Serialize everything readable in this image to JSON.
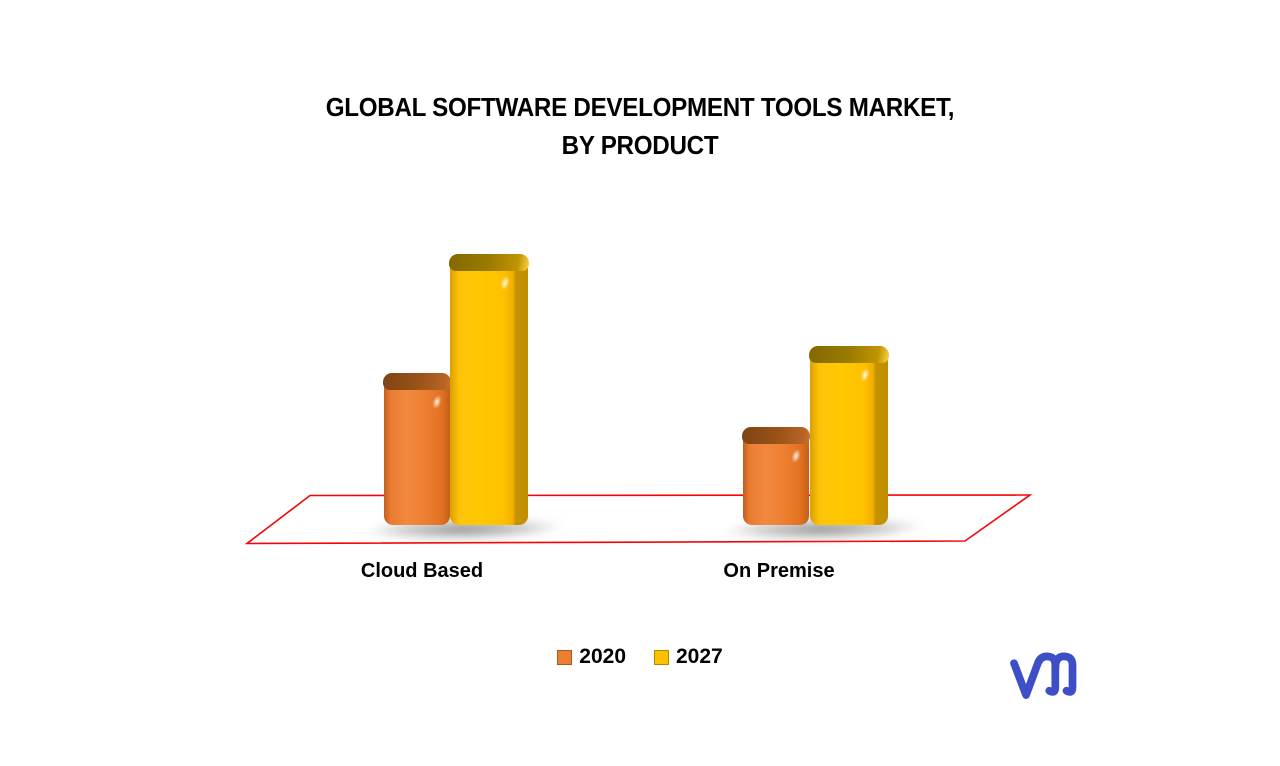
{
  "title": {
    "line1": "GLOBAL SOFTWARE DEVELOPMENT TOOLS MARKET,",
    "line2": "BY PRODUCT"
  },
  "chart_data": {
    "type": "bar",
    "style": "3d-rounded-bars",
    "title": "GLOBAL SOFTWARE DEVELOPMENT TOOLS MARKET, BY PRODUCT",
    "categories": [
      "Cloud Based",
      "On Premise"
    ],
    "series": [
      {
        "name": "2020",
        "color": "#ED7D31",
        "values": [
          56,
          36
        ]
      },
      {
        "name": "2027",
        "color": "#FFC000",
        "values": [
          100,
          66
        ]
      }
    ],
    "value_axis_visible": false,
    "values_note": "No value axis or data labels are shown; values are bar heights normalized to tallest bar = 100",
    "xlabel": "",
    "ylabel": "",
    "grid": false,
    "legend_position": "bottom",
    "floor_outline_color": "#F40505"
  },
  "icons": {
    "logo": "vmr-monogram"
  },
  "logo": {
    "color": "#3D4EC6"
  }
}
